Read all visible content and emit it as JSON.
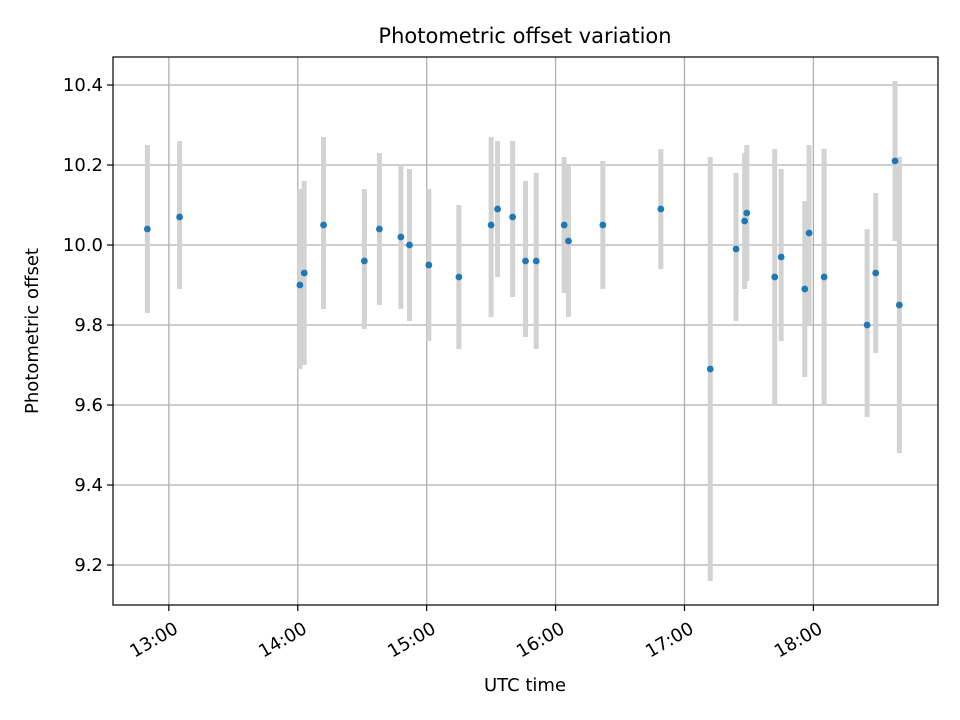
{
  "chart_data": {
    "type": "scatter",
    "title": "Photometric offset variation",
    "xlabel": "UTC time",
    "ylabel": "Photometric offset",
    "x_ticks": [
      "13:00",
      "14:00",
      "15:00",
      "16:00",
      "17:00",
      "18:00"
    ],
    "y_ticks": [
      "9.2",
      "9.4",
      "9.6",
      "9.8",
      "10.0",
      "10.2",
      "10.4"
    ],
    "xlim": [
      "12:34",
      "18:58"
    ],
    "ylim": [
      9.1,
      10.47
    ],
    "grid": true,
    "point_color": "#1f77b4",
    "errorbar_color": "#d3d3d3",
    "points": [
      {
        "t": "12:50",
        "y": 10.04,
        "lo": 9.83,
        "hi": 10.25
      },
      {
        "t": "13:05",
        "y": 10.07,
        "lo": 9.89,
        "hi": 10.26
      },
      {
        "t": "14:01",
        "y": 9.9,
        "lo": 9.69,
        "hi": 10.14
      },
      {
        "t": "14:03",
        "y": 9.93,
        "lo": 9.7,
        "hi": 10.16
      },
      {
        "t": "14:12",
        "y": 10.05,
        "lo": 9.84,
        "hi": 10.27
      },
      {
        "t": "14:31",
        "y": 9.96,
        "lo": 9.79,
        "hi": 10.14
      },
      {
        "t": "14:38",
        "y": 10.04,
        "lo": 9.85,
        "hi": 10.23
      },
      {
        "t": "14:48",
        "y": 10.02,
        "lo": 9.84,
        "hi": 10.2
      },
      {
        "t": "14:52",
        "y": 10.0,
        "lo": 9.81,
        "hi": 10.19
      },
      {
        "t": "15:01",
        "y": 9.95,
        "lo": 9.76,
        "hi": 10.14
      },
      {
        "t": "15:15",
        "y": 9.92,
        "lo": 9.74,
        "hi": 10.1
      },
      {
        "t": "15:30",
        "y": 10.05,
        "lo": 9.82,
        "hi": 10.27
      },
      {
        "t": "15:33",
        "y": 10.09,
        "lo": 9.92,
        "hi": 10.26
      },
      {
        "t": "15:40",
        "y": 10.07,
        "lo": 9.87,
        "hi": 10.26
      },
      {
        "t": "15:46",
        "y": 9.96,
        "lo": 9.77,
        "hi": 10.16
      },
      {
        "t": "15:51",
        "y": 9.96,
        "lo": 9.74,
        "hi": 10.18
      },
      {
        "t": "16:04",
        "y": 10.05,
        "lo": 9.88,
        "hi": 10.22
      },
      {
        "t": "16:06",
        "y": 10.01,
        "lo": 9.82,
        "hi": 10.2
      },
      {
        "t": "16:22",
        "y": 10.05,
        "lo": 9.89,
        "hi": 10.21
      },
      {
        "t": "16:49",
        "y": 10.09,
        "lo": 9.94,
        "hi": 10.24
      },
      {
        "t": "17:12",
        "y": 9.69,
        "lo": 9.16,
        "hi": 10.22
      },
      {
        "t": "17:24",
        "y": 9.99,
        "lo": 9.81,
        "hi": 10.18
      },
      {
        "t": "17:28",
        "y": 10.06,
        "lo": 9.89,
        "hi": 10.23
      },
      {
        "t": "17:29",
        "y": 10.08,
        "lo": 9.91,
        "hi": 10.25
      },
      {
        "t": "17:42",
        "y": 9.92,
        "lo": 9.6,
        "hi": 10.24
      },
      {
        "t": "17:45",
        "y": 9.97,
        "lo": 9.76,
        "hi": 10.19
      },
      {
        "t": "17:56",
        "y": 9.89,
        "lo": 9.67,
        "hi": 10.11
      },
      {
        "t": "17:58",
        "y": 10.03,
        "lo": 9.8,
        "hi": 10.25
      },
      {
        "t": "18:05",
        "y": 9.92,
        "lo": 9.6,
        "hi": 10.24
      },
      {
        "t": "18:25",
        "y": 9.8,
        "lo": 9.57,
        "hi": 10.04
      },
      {
        "t": "18:29",
        "y": 9.93,
        "lo": 9.73,
        "hi": 10.13
      },
      {
        "t": "18:38",
        "y": 10.21,
        "lo": 10.01,
        "hi": 10.41
      },
      {
        "t": "18:40",
        "y": 9.85,
        "lo": 9.48,
        "hi": 10.22
      }
    ]
  }
}
